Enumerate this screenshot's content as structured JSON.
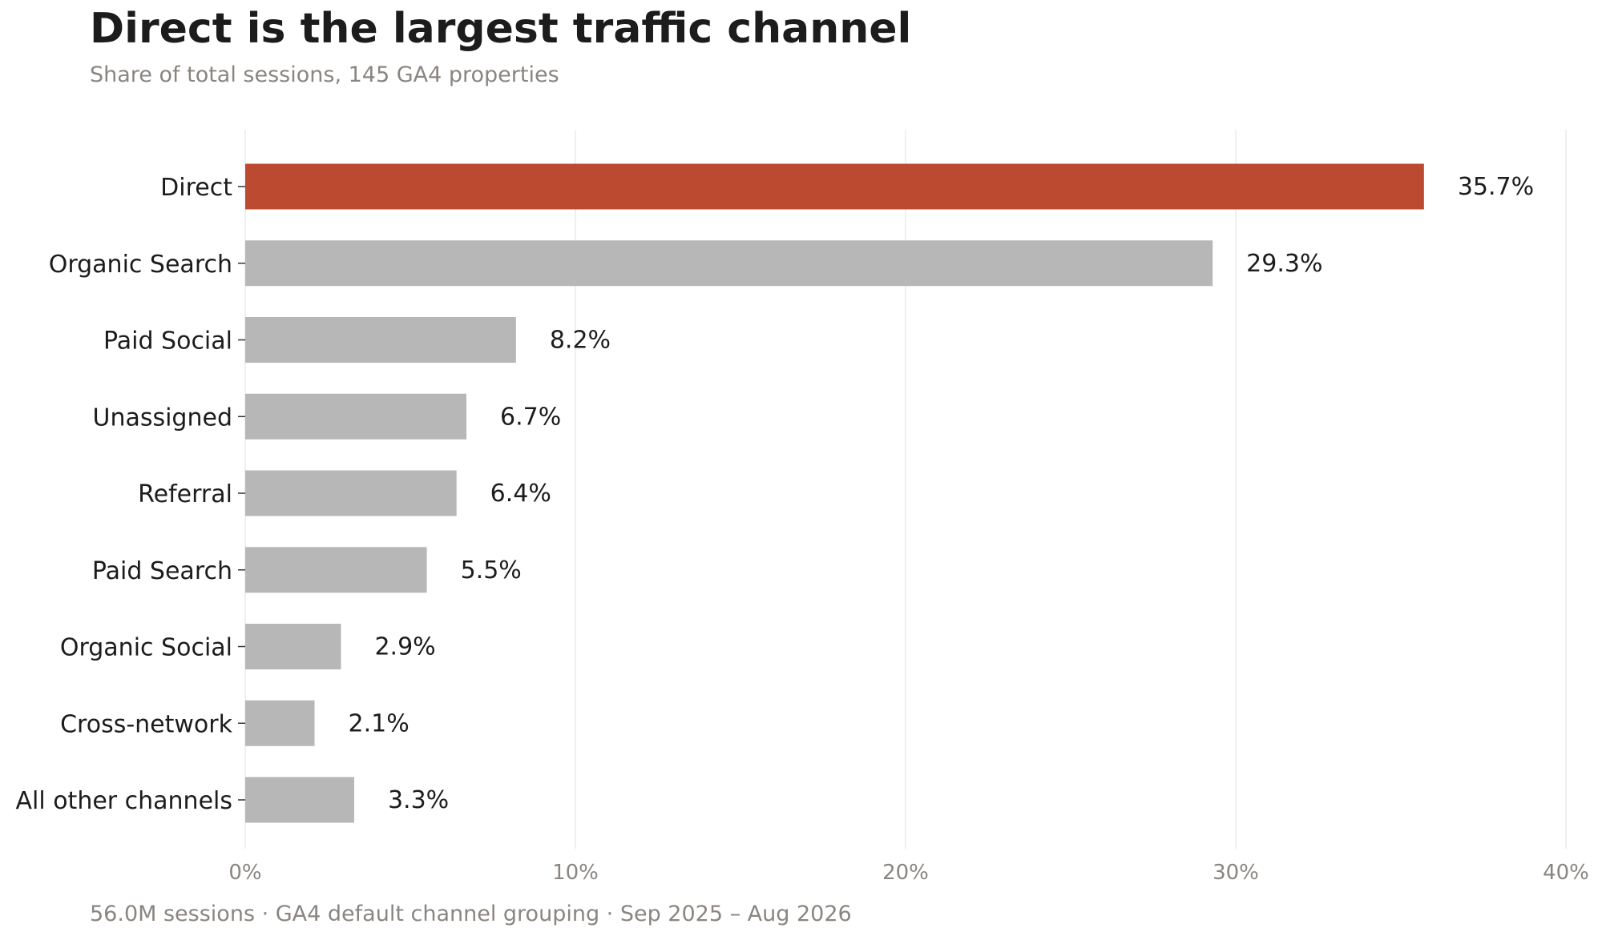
{
  "chart_data": {
    "type": "bar",
    "orientation": "horizontal",
    "title": "Direct is the largest traffic channel",
    "subtitle": "Share of total sessions, 145 GA4 properties",
    "footnote": "56.0M sessions · GA4 default channel grouping · Sep 2025 – Aug 2026",
    "categories": [
      "Direct",
      "Organic Search",
      "Paid Social",
      "Unassigned",
      "Referral",
      "Paid Search",
      "Organic Social",
      "Cross-network",
      "All other channels"
    ],
    "values": [
      35.7,
      29.3,
      8.2,
      6.7,
      6.4,
      5.5,
      2.9,
      2.1,
      3.3
    ],
    "value_labels": [
      "35.7%",
      "29.3%",
      "8.2%",
      "6.7%",
      "6.4%",
      "5.5%",
      "2.9%",
      "2.1%",
      "3.3%"
    ],
    "highlight": "Direct",
    "xlim": [
      0,
      40
    ],
    "x_ticks": [
      0,
      10,
      20,
      30,
      40
    ],
    "x_tick_labels": [
      "0%",
      "10%",
      "20%",
      "30%",
      "40%"
    ],
    "grid": "vertical",
    "colors": {
      "highlight": "#bc4a31",
      "default": "#b7b7b7"
    }
  }
}
